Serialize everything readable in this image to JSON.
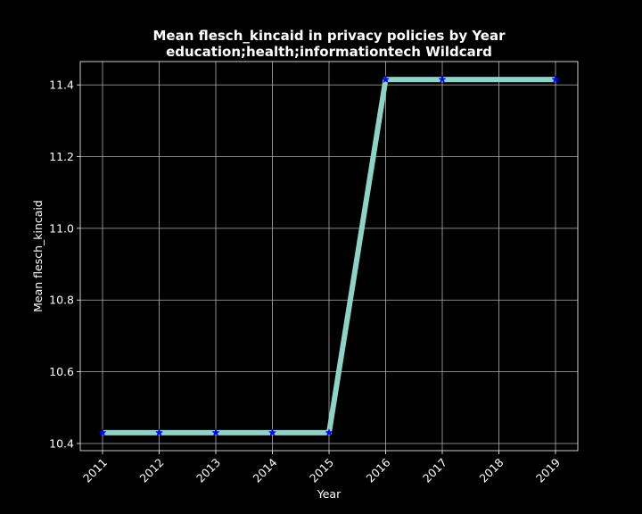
{
  "chart_data": {
    "type": "line",
    "title": "Mean flesch_kincaid in privacy policies by Year",
    "subtitle": "education;health;informationtech Wildcard",
    "xlabel": "Year",
    "ylabel": "Mean flesch_kincaid",
    "x": [
      "2011",
      "2012",
      "2013",
      "2014",
      "2015",
      "2016",
      "2017",
      "2018",
      "2019"
    ],
    "y_ticks": [
      "10.4",
      "10.6",
      "10.8",
      "11.0",
      "11.2",
      "11.4"
    ],
    "y_tick_values": [
      10.4,
      10.6,
      10.8,
      11.0,
      11.2,
      11.4
    ],
    "ylim": [
      10.38,
      11.465
    ],
    "grid": true,
    "series": [
      {
        "x": [
          "2011",
          "2012",
          "2013",
          "2014",
          "2015",
          "2016",
          "2017",
          "2019"
        ],
        "values": [
          10.43,
          10.43,
          10.43,
          10.43,
          10.43,
          11.415,
          11.415,
          11.415
        ],
        "line_color": "#8dd3c7",
        "marker": "star",
        "marker_color": "#0000ff"
      }
    ]
  }
}
